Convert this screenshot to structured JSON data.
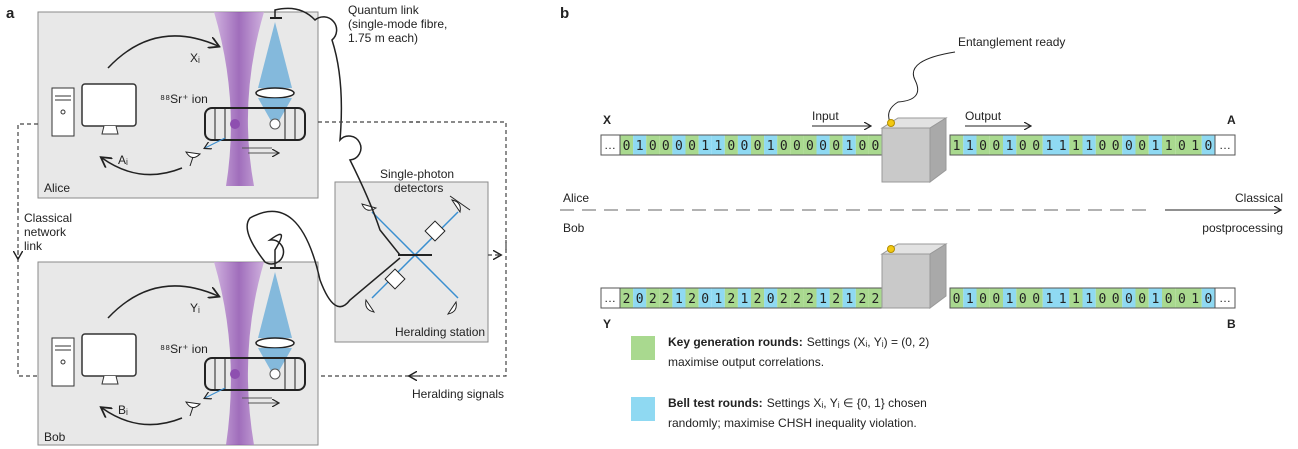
{
  "panel_a": {
    "label": "a",
    "quantum_link": [
      "Quantum link",
      "(single-mode fibre,",
      "1.75 m each)"
    ],
    "alice": {
      "name": "Alice",
      "setting": "Xᵢ",
      "outcome": "Aᵢ",
      "ion": "⁸⁸Sr⁺ ion"
    },
    "bob": {
      "name": "Bob",
      "setting": "Yᵢ",
      "outcome": "Bᵢ",
      "ion": "⁸⁸Sr⁺ ion"
    },
    "classical_link": [
      "Classical",
      "network",
      "link"
    ],
    "detectors": [
      "Single-photon",
      "detectors"
    ],
    "heralding_station": "Heralding station",
    "heralding_signals": "Heralding signals"
  },
  "panel_b": {
    "label": "b",
    "entanglement_ready": "Entanglement ready",
    "input": "Input",
    "output": "Output",
    "ellipsis": "…",
    "rows": [
      {
        "in_label": "X",
        "in_bits": "01000011000100000100",
        "in_rounds": [
          0,
          1,
          0,
          0,
          1,
          0,
          1,
          1,
          0,
          1,
          0,
          1,
          0,
          0,
          0,
          1,
          0,
          1,
          0,
          0
        ],
        "out_label": "A",
        "out_bits": "11001001111000011010",
        "out_rounds": [
          0,
          1,
          0,
          0,
          1,
          0,
          0,
          1,
          1,
          0,
          1,
          0,
          0,
          1,
          0,
          1,
          0,
          0,
          0,
          1
        ]
      },
      {
        "in_label": "Y",
        "in_bits": "20221201212022212122",
        "in_rounds": [
          0,
          1,
          0,
          0,
          1,
          0,
          1,
          1,
          0,
          1,
          0,
          1,
          0,
          0,
          0,
          1,
          0,
          1,
          0,
          0
        ],
        "out_label": "B",
        "out_bits": "01001001111000010010",
        "out_rounds": [
          0,
          1,
          0,
          0,
          1,
          0,
          0,
          1,
          1,
          0,
          1,
          0,
          0,
          1,
          0,
          1,
          0,
          0,
          0,
          1
        ]
      }
    ],
    "alice": "Alice",
    "bob": "Bob",
    "classical": [
      "Classical",
      "postprocessing"
    ],
    "legend": [
      {
        "color": "#a9d98f",
        "title": "Key generation rounds:",
        "text": [
          "Settings (Xᵢ, Yᵢ) = (0, 2)",
          "maximise output correlations."
        ]
      },
      {
        "color": "#8fd9f2",
        "title": "Bell test rounds:",
        "text": [
          "Settings Xᵢ, Yᵢ ∈ {0, 1} chosen",
          "randomly; maximise CHSH inequality violation."
        ]
      }
    ]
  }
}
